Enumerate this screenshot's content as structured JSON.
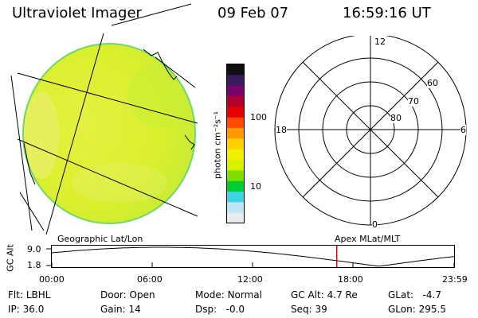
{
  "header": {
    "instrument": "Ultraviolet Imager",
    "date": "09 Feb 07",
    "time": "16:59:16 UT"
  },
  "colorbar": {
    "unit_label": "photon cm⁻²s⁻¹",
    "ticks": [
      "100",
      "10"
    ],
    "colors": [
      "#e9ecee",
      "#bfe5f2",
      "#3fd3e6",
      "#00cc33",
      "#7fe000",
      "#d9f000",
      "#f2ee00",
      "#ffd000",
      "#ff9a00",
      "#ff4a00",
      "#e60000",
      "#b1002f",
      "#7a006a",
      "#3a1a5e",
      "#101010"
    ]
  },
  "polar": {
    "mlt_labels": {
      "top": "12",
      "right": "6",
      "bottom": "0",
      "left": "18"
    },
    "lat_labels": [
      "60",
      "70",
      "80"
    ]
  },
  "track": {
    "left_label": "Geographic Lat/Lon",
    "right_label": "Apex MLat/MLT",
    "axis_title": "GC Alt",
    "y_ticks": [
      "9.0",
      "1.8"
    ],
    "x_ticks": [
      "00:00",
      "06:00",
      "12:00",
      "18:00",
      "23:59"
    ],
    "current_time_hours": 17.0,
    "marker_color": "#e60000"
  },
  "status": {
    "row1": [
      {
        "label": "Flt:",
        "value": "LBHL"
      },
      {
        "label": "Door:",
        "value": "Open"
      },
      {
        "label": "Mode:",
        "value": "Normal"
      },
      {
        "label": "GC Alt:",
        "value": "4.7 Re"
      },
      {
        "label": "GLat:",
        "value": "-4.7"
      }
    ],
    "row2": [
      {
        "label": "IP:",
        "value": "36.0"
      },
      {
        "label": "Gain:",
        "value": "14"
      },
      {
        "label": "Dsp:",
        "value": "-0.0"
      },
      {
        "label": "Seq:",
        "value": "39"
      },
      {
        "label": "GLon:",
        "value": "295.5"
      }
    ]
  }
}
